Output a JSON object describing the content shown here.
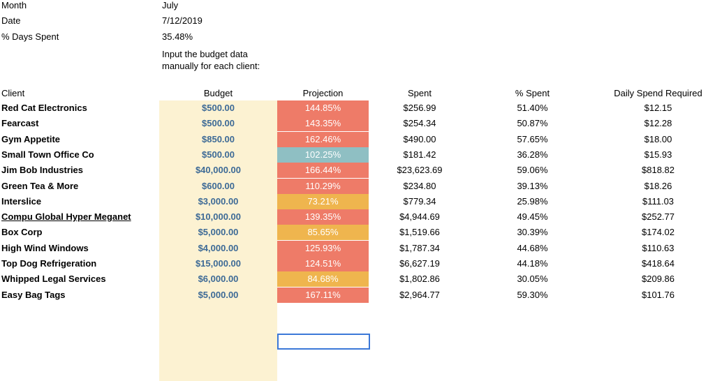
{
  "meta": {
    "month_label": "Month",
    "month_value": "July",
    "date_label": "Date",
    "date_value": "7/12/2019",
    "days_label": "% Days Spent",
    "days_value": "35.48%",
    "note_line1": "Input the budget data",
    "note_line2": "manually for each client:"
  },
  "headers": {
    "client": "Client",
    "budget": "Budget",
    "projection": "Projection",
    "spent": "Spent",
    "pct_spent": "% Spent",
    "daily": "Daily Spend Required"
  },
  "colors": {
    "over": "#ee7b68",
    "under": "#efb54e",
    "ontrack": "#8fbfc3",
    "budget_bg": "#fcf2d2"
  },
  "rows": [
    {
      "client": "Red Cat Electronics",
      "budget": "$500.00",
      "projection": "144.85%",
      "status": "over",
      "spent": "$256.99",
      "pct": "51.40%",
      "daily": "$12.15"
    },
    {
      "client": "Fearcast",
      "budget": "$500.00",
      "projection": "143.35%",
      "status": "over",
      "spent": "$254.34",
      "pct": "50.87%",
      "daily": "$12.28"
    },
    {
      "client": "Gym Appetite",
      "budget": "$850.00",
      "projection": "162.46%",
      "status": "over",
      "spent": "$490.00",
      "pct": "57.65%",
      "daily": "$18.00"
    },
    {
      "client": "Small Town Office Co",
      "budget": "$500.00",
      "projection": "102.25%",
      "status": "ontrack",
      "spent": "$181.42",
      "pct": "36.28%",
      "daily": "$15.93"
    },
    {
      "client": "Jim Bob Industries",
      "budget": "$40,000.00",
      "projection": "166.44%",
      "status": "over",
      "spent": "$23,623.69",
      "pct": "59.06%",
      "daily": "$818.82"
    },
    {
      "client": "Green Tea & More",
      "budget": "$600.00",
      "projection": "110.29%",
      "status": "over",
      "spent": "$234.80",
      "pct": "39.13%",
      "daily": "$18.26"
    },
    {
      "client": "Interslice",
      "budget": "$3,000.00",
      "projection": "73.21%",
      "status": "under",
      "spent": "$779.34",
      "pct": "25.98%",
      "daily": "$111.03"
    },
    {
      "client": "Compu Global Hyper Meganet",
      "budget": "$10,000.00",
      "projection": "139.35%",
      "status": "over",
      "spent": "$4,944.69",
      "pct": "49.45%",
      "daily": "$252.77",
      "link": true
    },
    {
      "client": "Box Corp",
      "budget": "$5,000.00",
      "projection": "85.65%",
      "status": "under",
      "spent": "$1,519.66",
      "pct": "30.39%",
      "daily": "$174.02"
    },
    {
      "client": "High Wind Windows",
      "budget": "$4,000.00",
      "projection": "125.93%",
      "status": "over",
      "spent": "$1,787.34",
      "pct": "44.68%",
      "daily": "$110.63"
    },
    {
      "client": "Top Dog Refrigeration",
      "budget": "$15,000.00",
      "projection": "124.51%",
      "status": "over",
      "spent": "$6,627.19",
      "pct": "44.18%",
      "daily": "$418.64"
    },
    {
      "client": "Whipped Legal Services",
      "budget": "$6,000.00",
      "projection": "84.68%",
      "status": "under",
      "spent": "$1,802.86",
      "pct": "30.05%",
      "daily": "$209.86"
    },
    {
      "client": "Easy Bag Tags",
      "budget": "$5,000.00",
      "projection": "167.11%",
      "status": "over",
      "spent": "$2,964.77",
      "pct": "59.30%",
      "daily": "$101.76"
    }
  ]
}
